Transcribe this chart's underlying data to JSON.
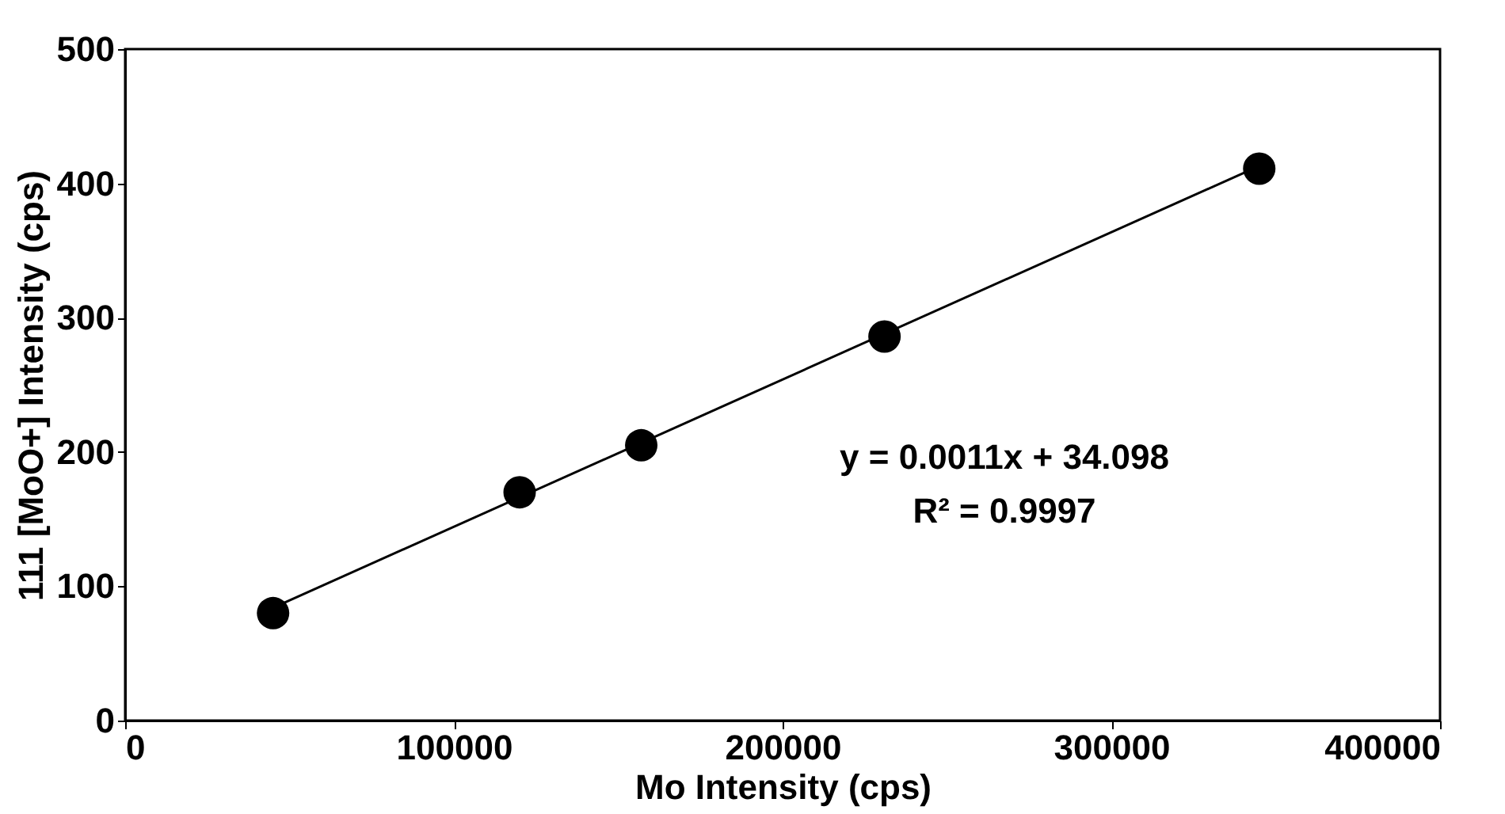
{
  "chart_data": {
    "type": "scatter",
    "xlabel": "Mo Intensity (cps)",
    "ylabel": "111 [MoO+] Intensity (cps)",
    "xlim": [
      0,
      400000
    ],
    "xticks": [
      0,
      100000,
      200000,
      300000,
      400000
    ],
    "ylim": [
      0,
      500
    ],
    "yticks": [
      0,
      100,
      200,
      300,
      400,
      500
    ],
    "grid": false,
    "marker": "circle",
    "series": [
      {
        "color": "#000000",
        "x": [
          45000,
          120000,
          157000,
          231000,
          345000
        ],
        "values": [
          80,
          170,
          205,
          286,
          411
        ]
      },
      {
        "type": "line",
        "marker": "none",
        "color": "#000000",
        "x": [
          45000,
          345000
        ],
        "values": [
          84,
          413
        ]
      }
    ],
    "annotations": [
      "y = 0.0011x + 34.098",
      "R² = 0.9997"
    ]
  }
}
